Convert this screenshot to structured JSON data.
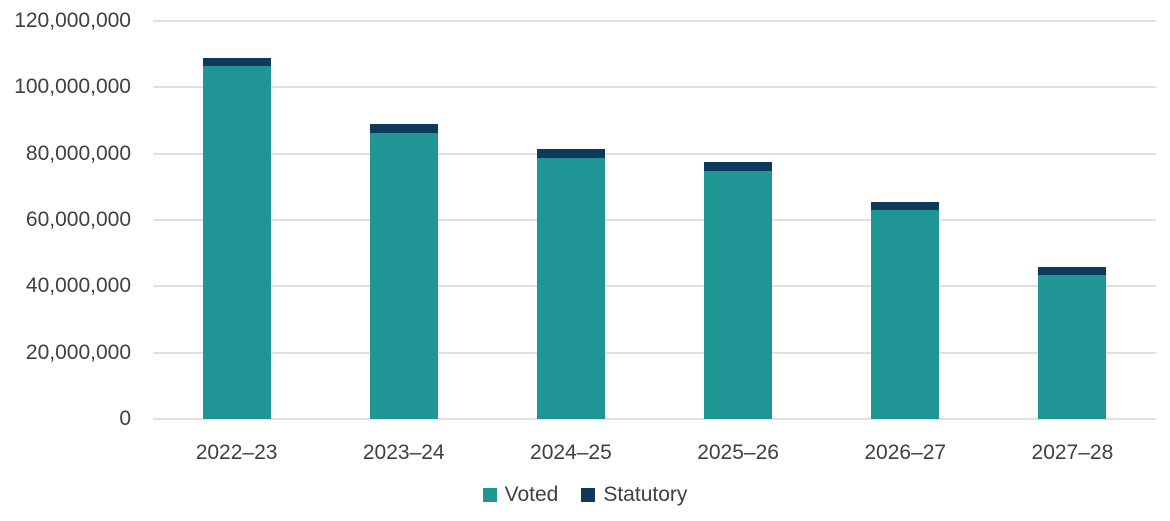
{
  "chart_data": {
    "type": "bar",
    "stacked": true,
    "title": "",
    "xlabel": "",
    "ylabel": "",
    "categories": [
      "2022–23",
      "2023–24",
      "2024–25",
      "2025–26",
      "2026–27",
      "2027–28"
    ],
    "series": [
      {
        "name": "Voted",
        "color": "#1F9595",
        "values": [
          106400000,
          86300000,
          78700000,
          74800000,
          63000000,
          43400000
        ]
      },
      {
        "name": "Statutory",
        "color": "#0D3A5C",
        "values": [
          2400000,
          2500000,
          2800000,
          2700000,
          2500000,
          2300000
        ]
      }
    ],
    "ylim": [
      0,
      120000000
    ],
    "ytick_step": 20000000,
    "ytick_labels": [
      "120,000,000",
      "100,000,000",
      "80,000,000",
      "60,000,000",
      "40,000,000",
      "20,000,000",
      "0"
    ],
    "grid": true,
    "legend_position": "bottom"
  },
  "colors": {
    "axis_text": "#404040",
    "gridline": "#E0E0E0",
    "background": "#FFFFFF"
  }
}
